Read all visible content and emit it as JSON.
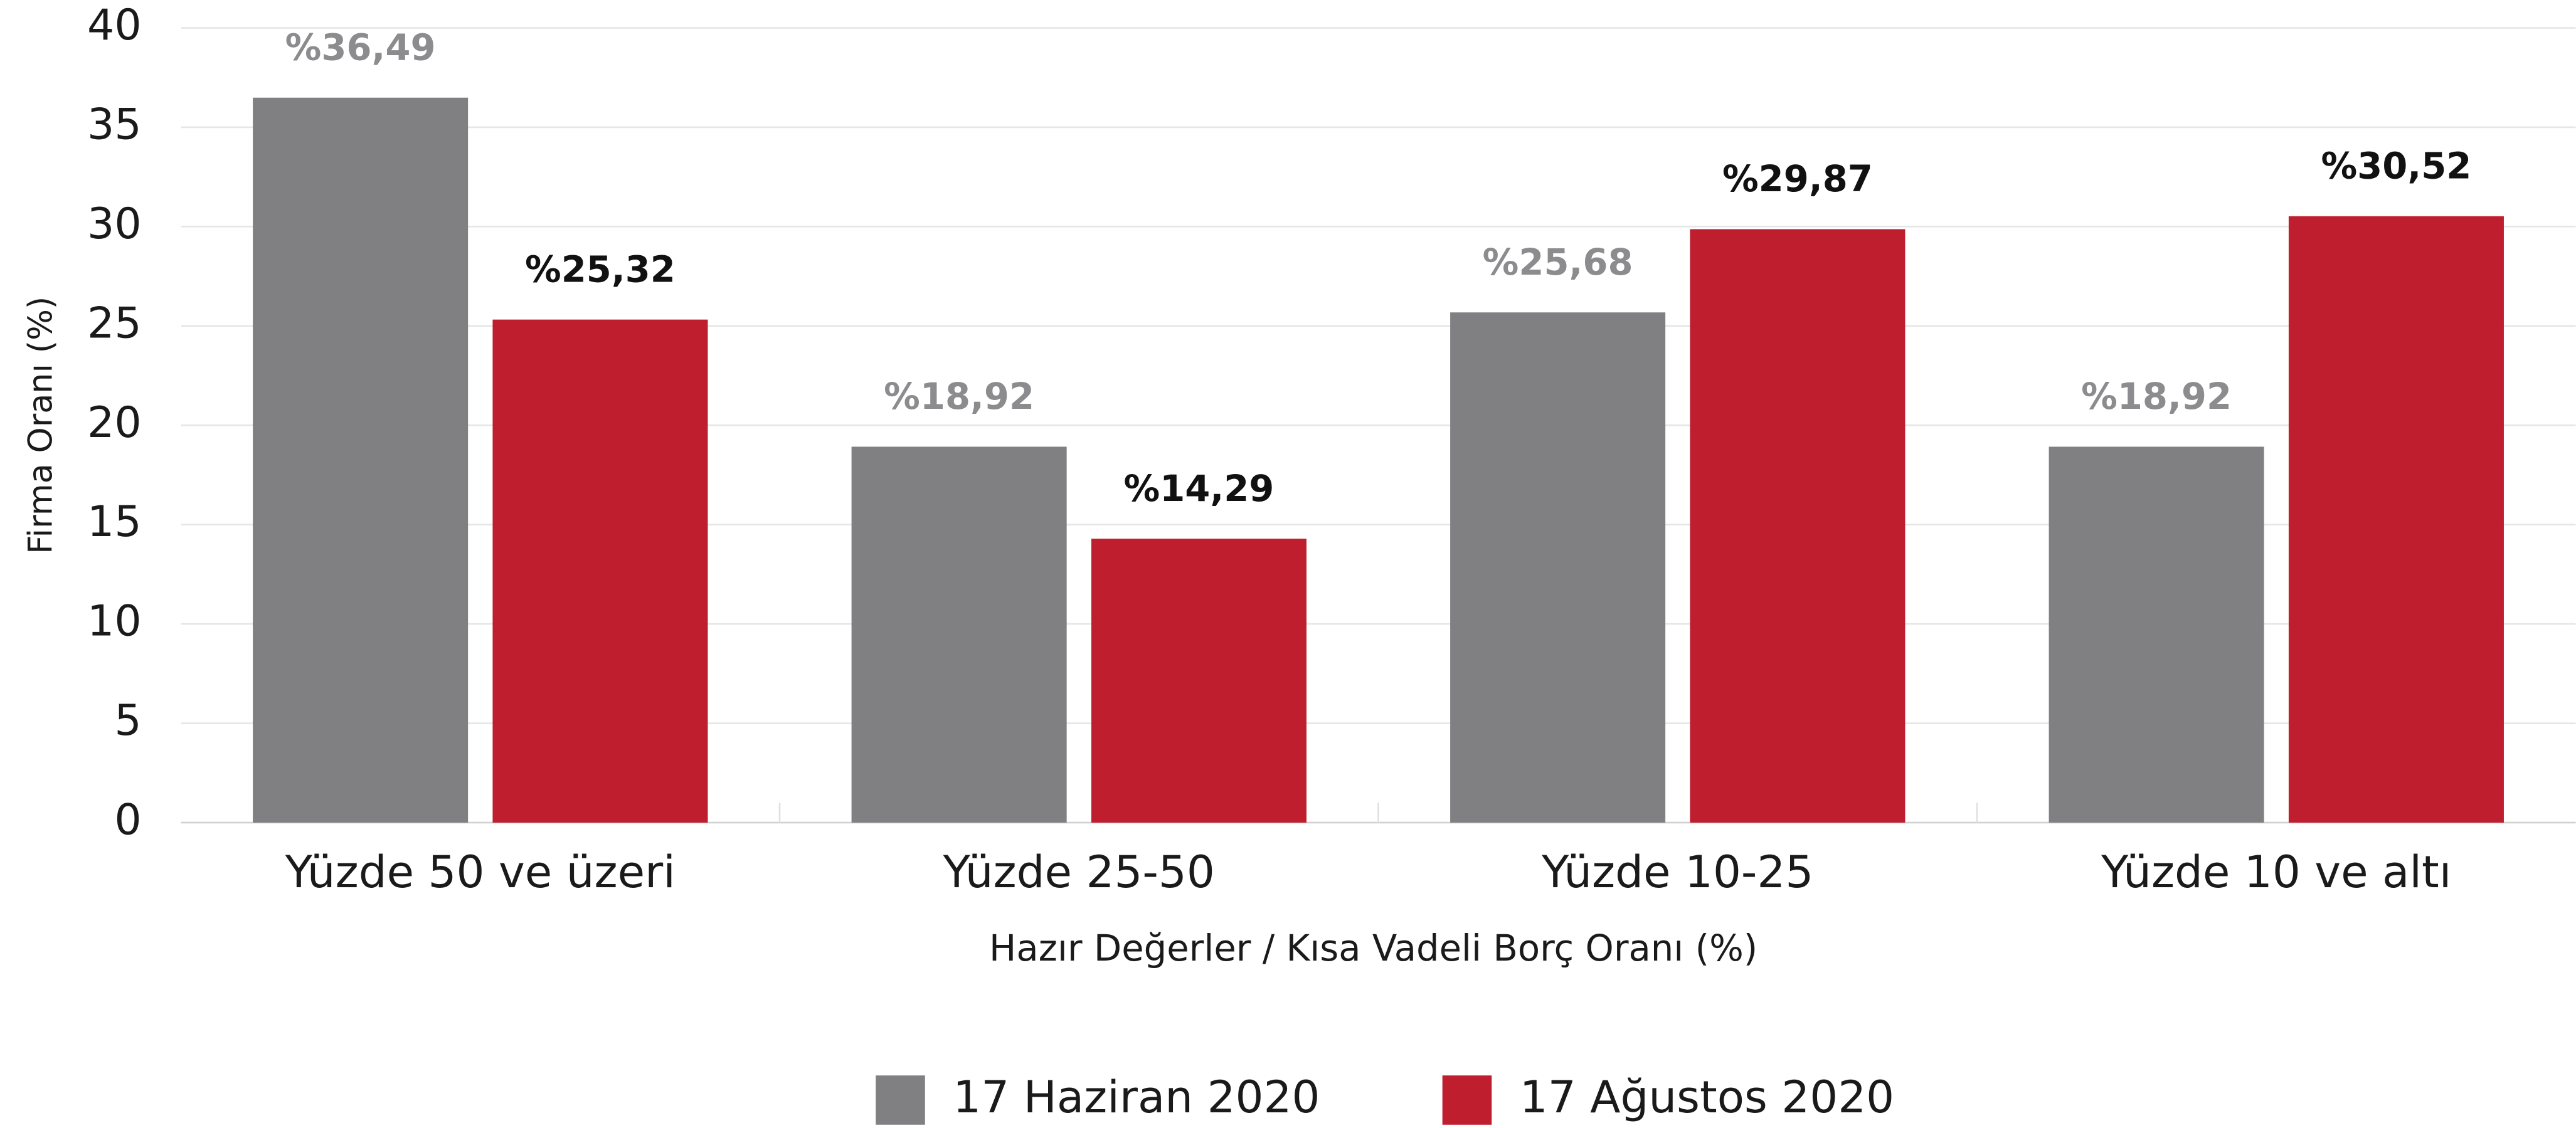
{
  "chart_data": {
    "type": "bar",
    "categories": [
      "Yüzde 50 ve üzeri",
      "Yüzde 25-50",
      "Yüzde 10-25",
      "Yüzde 10 ve altı"
    ],
    "series": [
      {
        "name": "17 Haziran 2020",
        "color": "#808083",
        "label_color": "#8c8c8f",
        "values": [
          36.49,
          18.92,
          25.68,
          18.92
        ],
        "value_labels": [
          "%36,49",
          "%18,92",
          "%25,68",
          "%18,92"
        ]
      },
      {
        "name": "17 Ağustos 2020",
        "color": "#be1e2d",
        "label_color": "#111111",
        "values": [
          25.32,
          14.29,
          29.87,
          30.52
        ],
        "value_labels": [
          "%25,32",
          "%14,29",
          "%29,87",
          "%30,52"
        ]
      }
    ],
    "ylim": [
      0,
      40
    ],
    "yticks": [
      0,
      5,
      10,
      15,
      20,
      25,
      30,
      35,
      40
    ],
    "y_label": "Firma Oranı (%)",
    "x_label": "Hazır Değerler / Kısa Vadeli Borç Oranı (%)",
    "grid": true,
    "legend": "bottom"
  }
}
